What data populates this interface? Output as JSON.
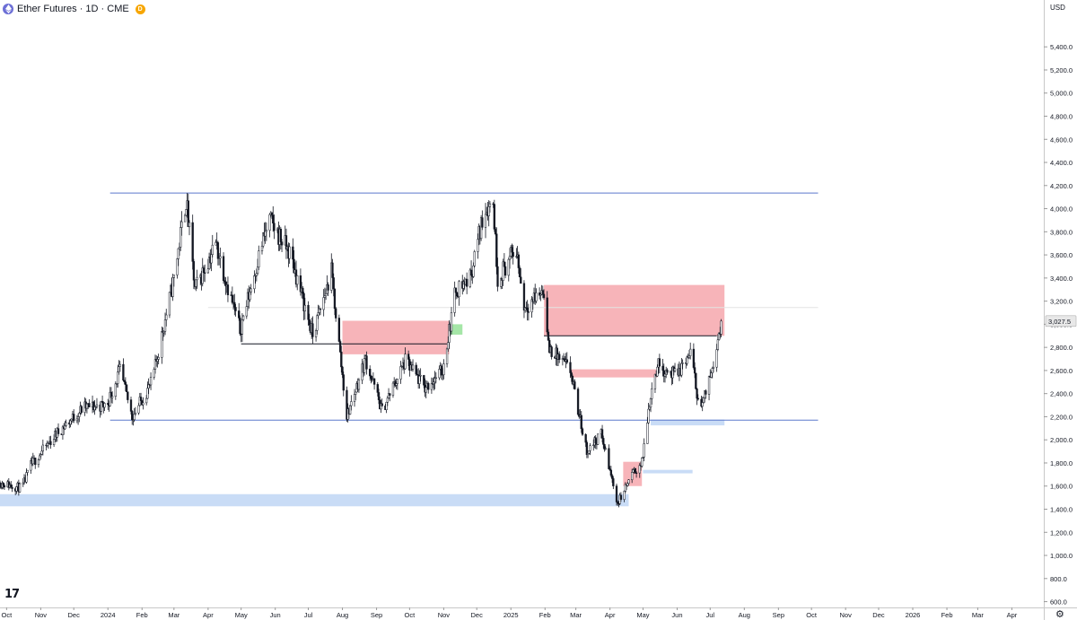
{
  "header": {
    "symbol_title": "Ether Futures · 1D · CME",
    "badge": "D"
  },
  "currency": "USD",
  "logo_text": "17",
  "settings_icon": "gear-icon",
  "colors": {
    "bull": "#ffffff",
    "bear": "#131722",
    "wick": "#131722",
    "zone_red": "#f7b4b9",
    "zone_blue": "#c9dcf6",
    "zone_green": "#a5e6a7",
    "level_line": "#5b78cc",
    "price_badge": "#e8e8e8"
  },
  "chart_data": {
    "type": "candlestick",
    "title": "Ether Futures · 1D · CME",
    "y_ticks": [
      "600.0",
      "800.0",
      "1,000.0",
      "1,200.0",
      "1,400.0",
      "1,600.0",
      "1,800.0",
      "2,000.0",
      "2,200.0",
      "2,400.0",
      "2,600.0",
      "2,800.0",
      "3,000.0",
      "3,200.0",
      "3,400.0",
      "3,600.0",
      "3,800.0",
      "4,000.0",
      "4,200.0",
      "4,400.0",
      "4,600.0",
      "4,800.0",
      "5,000.0",
      "5,200.0",
      "5,400.0"
    ],
    "y_range": [
      550,
      5650
    ],
    "x_ticks": [
      "Oct",
      "Nov",
      "Dec",
      "2024",
      "Feb",
      "Mar",
      "Apr",
      "May",
      "Jun",
      "Jul",
      "Aug",
      "Sep",
      "Oct",
      "Nov",
      "Dec",
      "2025",
      "Feb",
      "Mar",
      "Apr",
      "May",
      "Jun",
      "Jul",
      "Aug",
      "Sep",
      "Oct",
      "Nov",
      "Dec",
      "2026",
      "Feb",
      "Mar",
      "Apr"
    ],
    "x_range": [
      "2023-09-25",
      "2026-04-30"
    ],
    "last_price": "3,027.5",
    "last_value": 3027.5,
    "price_path": [
      [
        "2023-09-25",
        1630
      ],
      [
        "2023-10-15",
        1580
      ],
      [
        "2023-10-23",
        1780
      ],
      [
        "2023-11-15",
        2050
      ],
      [
        "2023-12-10",
        2280
      ],
      [
        "2023-12-31",
        2300
      ],
      [
        "2024-01-12",
        2600
      ],
      [
        "2024-01-23",
        2200
      ],
      [
        "2024-02-10",
        2500
      ],
      [
        "2024-03-01",
        3400
      ],
      [
        "2024-03-12",
        4080
      ],
      [
        "2024-03-20",
        3300
      ],
      [
        "2024-04-08",
        3700
      ],
      [
        "2024-04-30",
        2950
      ],
      [
        "2024-05-20",
        3700
      ],
      [
        "2024-05-27",
        3900
      ],
      [
        "2024-06-15",
        3600
      ],
      [
        "2024-07-05",
        2900
      ],
      [
        "2024-07-22",
        3450
      ],
      [
        "2024-08-05",
        2200
      ],
      [
        "2024-08-22",
        2700
      ],
      [
        "2024-09-06",
        2250
      ],
      [
        "2024-09-27",
        2680
      ],
      [
        "2024-10-15",
        2450
      ],
      [
        "2024-10-31",
        2600
      ],
      [
        "2024-11-12",
        3300
      ],
      [
        "2024-11-25",
        3400
      ],
      [
        "2024-12-08",
        4000
      ],
      [
        "2024-12-16",
        4050
      ],
      [
        "2024-12-20",
        3400
      ],
      [
        "2025-01-06",
        3650
      ],
      [
        "2025-01-13",
        3150
      ],
      [
        "2025-01-31",
        3300
      ],
      [
        "2025-02-04",
        2800
      ],
      [
        "2025-02-24",
        2600
      ],
      [
        "2025-03-02",
        2300
      ],
      [
        "2025-03-11",
        1900
      ],
      [
        "2025-03-24",
        2050
      ],
      [
        "2025-04-08",
        1450
      ],
      [
        "2025-04-21",
        1700
      ],
      [
        "2025-04-30",
        1800
      ],
      [
        "2025-05-08",
        2400
      ],
      [
        "2025-05-14",
        2650
      ],
      [
        "2025-05-31",
        2550
      ],
      [
        "2025-06-13",
        2750
      ],
      [
        "2025-06-22",
        2250
      ],
      [
        "2025-06-30",
        2500
      ],
      [
        "2025-07-11",
        3027
      ]
    ],
    "zones": [
      {
        "color": "red",
        "from": "2024-08-01",
        "to": "2024-11-06",
        "top": 3030,
        "bottom": 2740
      },
      {
        "color": "green",
        "from": "2024-11-06",
        "to": "2024-11-18",
        "top": 3000,
        "bottom": 2910
      },
      {
        "color": "red",
        "from": "2025-01-31",
        "to": "2025-07-14",
        "top": 3340,
        "bottom": 2900
      },
      {
        "color": "red",
        "from": "2025-02-24",
        "to": "2025-05-14",
        "top": 2610,
        "bottom": 2540
      },
      {
        "color": "red",
        "from": "2025-04-13",
        "to": "2025-04-30",
        "top": 1810,
        "bottom": 1600
      },
      {
        "color": "blue",
        "from": "2023-09-25",
        "to": "2025-04-18",
        "top": 1530,
        "bottom": 1425
      },
      {
        "color": "blue",
        "from": "2025-05-08",
        "to": "2025-07-14",
        "top": 2175,
        "bottom": 2125
      },
      {
        "color": "blue",
        "from": "2025-05-01",
        "to": "2025-06-15",
        "top": 1740,
        "bottom": 1710
      }
    ],
    "lines": [
      {
        "color": "blue",
        "from": "2024-01-03",
        "to": "2025-10-07",
        "value": 4135
      },
      {
        "color": "blue",
        "from": "2024-01-03",
        "to": "2025-10-07",
        "value": 2170
      },
      {
        "color": "black",
        "from": "2024-05-01",
        "to": "2024-11-06",
        "value": 2830
      },
      {
        "color": "black",
        "from": "2025-01-31",
        "to": "2025-07-07",
        "value": 2900
      },
      {
        "color": "gray",
        "from": "2024-04-01",
        "to": "2025-10-07",
        "value": 3145
      }
    ]
  }
}
